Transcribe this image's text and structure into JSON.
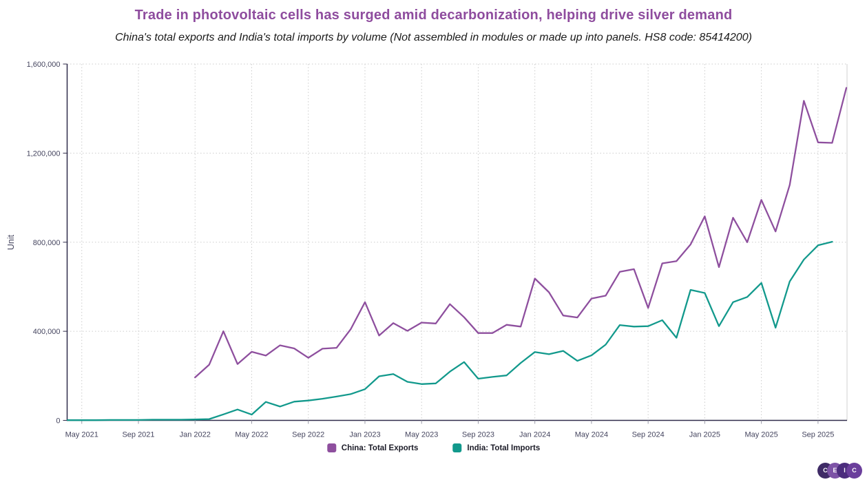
{
  "title": "Trade in photovoltaic cells has surged amid decarbonization, helping drive silver demand",
  "subtitle": "China's total exports and India's total imports by volume (Not assembled in modules or made up into panels. HS8 code: 85414200)",
  "colors": {
    "title": "#8e4c9e",
    "axis_line": "#2f2b4a",
    "tick_text": "#45455f",
    "x_tick_mark": "#9a9aa8",
    "gridline": "#cbcbcb",
    "right_border": "#d9d9d9",
    "background": "#ffffff"
  },
  "y_axis": {
    "label": "Unit",
    "tick_labels": [
      "0",
      "400,000",
      "800,000",
      "1,200,000",
      "1,600,000"
    ],
    "tick_values": [
      0,
      400000,
      800000,
      1200000,
      1600000
    ]
  },
  "x_axis": {
    "tick_labels": [
      "May 2021",
      "Sep 2021",
      "Jan 2022",
      "May 2022",
      "Sep 2022",
      "Jan 2023",
      "May 2023",
      "Sep 2023",
      "Jan 2024",
      "May 2024",
      "Sep 2024",
      "Jan 2025",
      "May 2025",
      "Sep 2025"
    ],
    "tick_offsets": [
      1,
      5,
      9,
      13,
      17,
      21,
      25,
      29,
      33,
      37,
      41,
      45,
      49,
      53
    ]
  },
  "chart_data": {
    "type": "line",
    "title": "Trade in photovoltaic cells has surged amid decarbonization, helping drive silver demand",
    "subtitle": "China's total exports and India's total imports by volume (Not assembled in modules or made up into panels. HS8 code: 85414200)",
    "ylabel": "Unit",
    "ylim": [
      0,
      1600000
    ],
    "x_unit": "month",
    "x_range": [
      "Apr 2021",
      "Nov 2025"
    ],
    "grid": "dotted gridlines at every labeled tick, both axes",
    "legend_position": "bottom-center",
    "series": [
      {
        "name": "China: Total Exports",
        "color": "#8e4f9e",
        "frequency": "monthly",
        "start_month": "Jan 2022",
        "start_offset": 9,
        "values": [
          193000,
          250000,
          400000,
          253000,
          308000,
          291000,
          337000,
          323000,
          281000,
          322000,
          326000,
          410000,
          531000,
          381000,
          437000,
          402000,
          439000,
          435000,
          522000,
          463000,
          392000,
          392000,
          429000,
          421000,
          637000,
          575000,
          471000,
          462000,
          547000,
          560000,
          667000,
          679000,
          505000,
          705000,
          715000,
          790000,
          916000,
          688000,
          910000,
          800000,
          990000,
          848000,
          1057000,
          1435000,
          1248000,
          1246000,
          1493000
        ]
      },
      {
        "name": "India: Total Imports",
        "color": "#12998c",
        "frequency": "monthly",
        "start_month": "Apr 2021",
        "start_offset": 0,
        "values": [
          1000,
          1000,
          1000,
          2000,
          2000,
          2000,
          3000,
          3000,
          3000,
          4000,
          6000,
          27000,
          49000,
          26000,
          83000,
          62000,
          84000,
          89000,
          97000,
          107000,
          118000,
          140000,
          198000,
          208000,
          173000,
          163000,
          166000,
          219000,
          262000,
          187000,
          195000,
          202000,
          258000,
          307000,
          297000,
          312000,
          267000,
          292000,
          340000,
          428000,
          421000,
          423000,
          450000,
          371000,
          586000,
          572000,
          423000,
          531000,
          554000,
          617000,
          416000,
          624000,
          722000,
          786000,
          802000
        ]
      }
    ]
  },
  "legend": {
    "items": [
      {
        "label": "China: Total Exports",
        "color": "#8e4f9e"
      },
      {
        "label": "India: Total Imports",
        "color": "#12998c"
      }
    ]
  },
  "logo": {
    "name": "CEIC",
    "circles": [
      {
        "letter": "C",
        "color": "#3f2b66"
      },
      {
        "letter": "E",
        "color": "#7d53a6"
      },
      {
        "letter": "I",
        "color": "#4c2d7d"
      },
      {
        "letter": "C",
        "color": "#6b3f9c"
      }
    ]
  }
}
